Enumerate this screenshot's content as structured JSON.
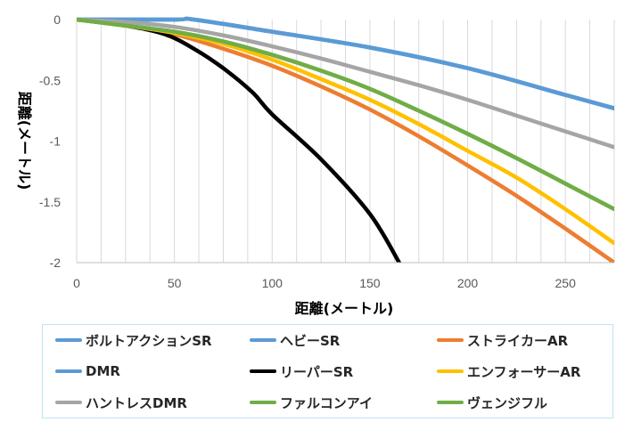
{
  "chart_data": {
    "type": "line",
    "title": "",
    "xlabel": "距離(メートル)",
    "ylabel": "距離(メートル)",
    "xlim": [
      0,
      275
    ],
    "ylim": [
      -2,
      0
    ],
    "x_ticks": [
      "0",
      "50",
      "100",
      "150",
      "200",
      "250"
    ],
    "x_tick_values": [
      0,
      50,
      100,
      150,
      200,
      250
    ],
    "y_ticks": [
      "0",
      "-0.5",
      "-1",
      "-1.5",
      "-2"
    ],
    "y_tick_values": [
      0,
      -0.5,
      -1,
      -1.5,
      -2
    ],
    "grid": "vertical",
    "legend_position": "bottom",
    "series": [
      {
        "name": "ボルトアクションSR",
        "color": "#5b9bd5",
        "x": [
          0,
          50,
          60,
          100,
          150,
          200,
          250,
          275
        ],
        "y": [
          0,
          0,
          0,
          -0.1,
          -0.23,
          -0.4,
          -0.62,
          -0.73
        ]
      },
      {
        "name": "ヘビーSR",
        "color": "#5b9bd5",
        "x": [
          0,
          50,
          60,
          100,
          150,
          200,
          250,
          275
        ],
        "y": [
          0,
          0,
          0,
          -0.1,
          -0.23,
          -0.4,
          -0.62,
          -0.73
        ]
      },
      {
        "name": "ストライカーAR",
        "color": "#ed7d31",
        "x": [
          0,
          25,
          50,
          75,
          100,
          125,
          150,
          175,
          200,
          225,
          250,
          275
        ],
        "y": [
          0,
          -0.05,
          -0.12,
          -0.24,
          -0.38,
          -0.55,
          -0.74,
          -0.96,
          -1.2,
          -1.45,
          -1.72,
          -2.0
        ]
      },
      {
        "name": "DMR",
        "color": "#5b9bd5",
        "x": [
          0,
          50,
          60,
          100,
          150,
          200,
          250,
          275
        ],
        "y": [
          0,
          0,
          0,
          -0.1,
          -0.23,
          -0.4,
          -0.62,
          -0.73
        ]
      },
      {
        "name": "リーパーSR",
        "color": "#000000",
        "x": [
          0,
          25,
          45,
          60,
          75,
          90,
          100,
          125,
          150,
          165
        ],
        "y": [
          0,
          -0.05,
          -0.12,
          -0.24,
          -0.4,
          -0.6,
          -0.78,
          -1.15,
          -1.6,
          -2.0
        ]
      },
      {
        "name": "エンフォーサーAR",
        "color": "#ffc000",
        "x": [
          0,
          25,
          50,
          75,
          100,
          125,
          150,
          175,
          200,
          225,
          250,
          275
        ],
        "y": [
          0,
          -0.05,
          -0.11,
          -0.2,
          -0.33,
          -0.49,
          -0.66,
          -0.86,
          -1.08,
          -1.3,
          -1.56,
          -1.84
        ]
      },
      {
        "name": "ハントレスDMR",
        "color": "#a5a5a5",
        "x": [
          0,
          25,
          50,
          75,
          100,
          125,
          150,
          175,
          200,
          225,
          250,
          275
        ],
        "y": [
          0,
          -0.02,
          -0.06,
          -0.13,
          -0.22,
          -0.32,
          -0.43,
          -0.54,
          -0.66,
          -0.79,
          -0.92,
          -1.05
        ]
      },
      {
        "name": "ファルコンアイ",
        "color": "#70ad47",
        "x": [
          0,
          25,
          50,
          75,
          100,
          125,
          150,
          175,
          200,
          225,
          250,
          275
        ],
        "y": [
          0,
          -0.05,
          -0.1,
          -0.18,
          -0.29,
          -0.42,
          -0.57,
          -0.75,
          -0.94,
          -1.14,
          -1.35,
          -1.56
        ]
      },
      {
        "name": "ヴェンジフル",
        "color": "#70ad47",
        "x": [
          0,
          25,
          50,
          75,
          100,
          125,
          150,
          175,
          200,
          225,
          250,
          275
        ],
        "y": [
          0,
          -0.05,
          -0.1,
          -0.18,
          -0.29,
          -0.42,
          -0.57,
          -0.75,
          -0.94,
          -1.14,
          -1.35,
          -1.56
        ]
      }
    ]
  }
}
